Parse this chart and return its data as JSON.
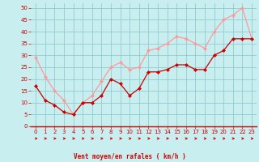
{
  "x": [
    0,
    1,
    2,
    3,
    4,
    5,
    6,
    7,
    8,
    9,
    10,
    11,
    12,
    13,
    14,
    15,
    16,
    17,
    18,
    19,
    20,
    21,
    22,
    23
  ],
  "y_mean": [
    17,
    11,
    9,
    6,
    5,
    10,
    10,
    13,
    20,
    18,
    13,
    16,
    23,
    23,
    24,
    26,
    26,
    24,
    24,
    30,
    32,
    37,
    37,
    37
  ],
  "y_gust": [
    29,
    21,
    15,
    11,
    5,
    10,
    13,
    19,
    25,
    27,
    24,
    25,
    32,
    33,
    35,
    38,
    37,
    35,
    33,
    40,
    45,
    47,
    50,
    37
  ],
  "bg_color": "#c8eef0",
  "grid_color": "#90cdd0",
  "mean_color": "#cc0000",
  "gust_color": "#ff9999",
  "xlabel": "Vent moyen/en rafales ( km/h )",
  "xlabel_color": "#cc0000",
  "xlabel_fontsize": 5.5,
  "tick_color": "#cc0000",
  "tick_fontsize": 5,
  "yticks": [
    0,
    5,
    10,
    15,
    20,
    25,
    30,
    35,
    40,
    45,
    50
  ],
  "ylim": [
    0,
    52
  ],
  "xlim": [
    -0.5,
    23.5
  ],
  "line_width": 0.9,
  "marker_size": 2.2
}
